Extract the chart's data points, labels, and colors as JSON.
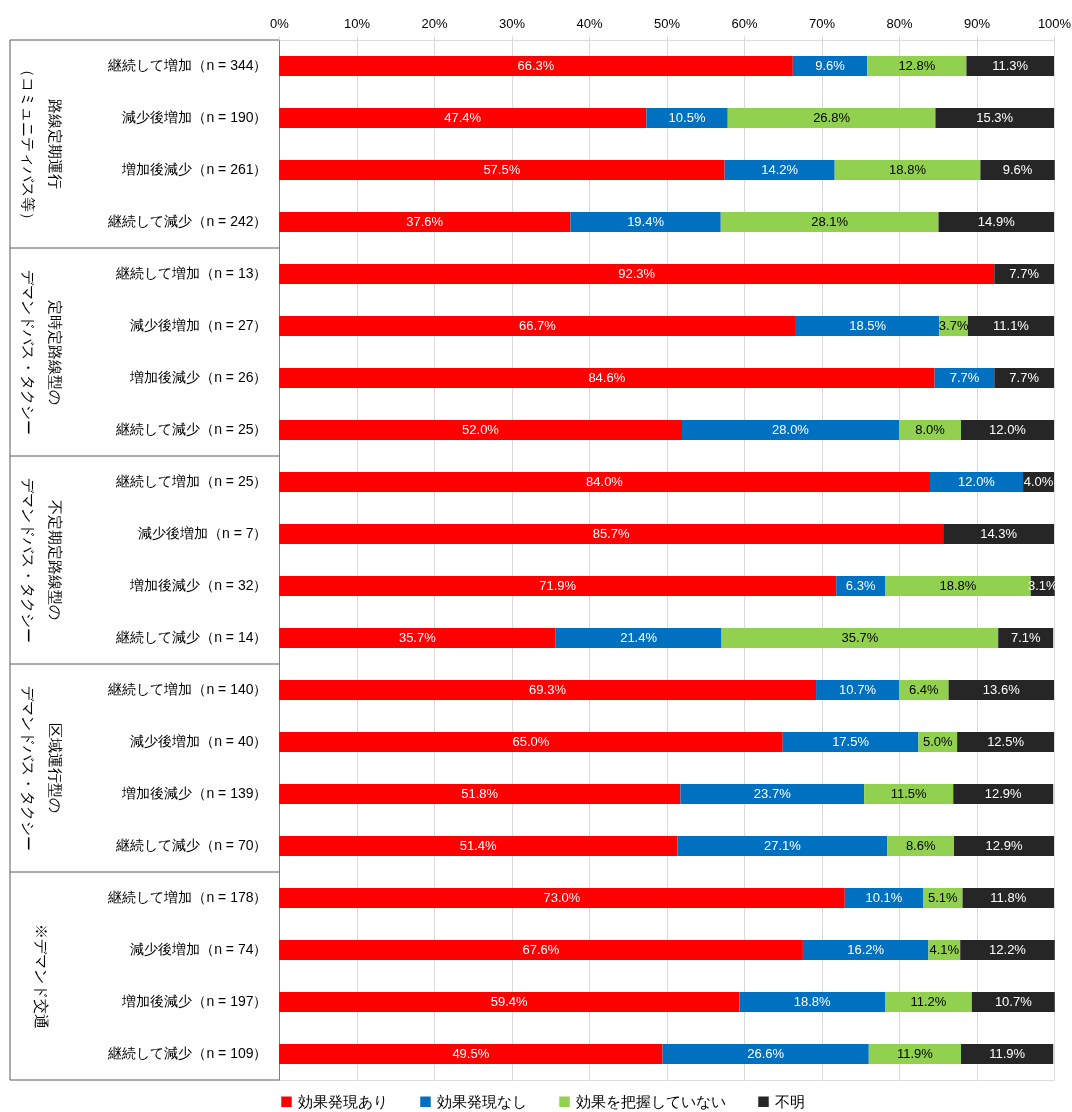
{
  "chart_data": {
    "type": "bar",
    "orientation": "horizontal",
    "stacked": true,
    "categories": [
      "継続して増加（n = 344）",
      "減少後増加（n = 190）",
      "増加後減少（n = 261）",
      "継続して減少（n = 242）",
      "継続して増加（n = 13）",
      "減少後増加（n = 27）",
      "増加後減少（n = 26）",
      "継続して減少（n = 25）",
      "継続して増加（n = 25）",
      "減少後増加（n = 7）",
      "増加後減少（n = 32）",
      "継続して減少（n = 14）",
      "継続して増加（n = 140）",
      "減少後増加（n = 40）",
      "増加後減少（n = 139）",
      "継続して減少（n = 70）",
      "継続して増加（n = 178）",
      "減少後増加（n = 74）",
      "増加後減少（n = 197）",
      "継続して減少（n = 109）"
    ],
    "series": [
      {
        "name": "効果発現あり",
        "color": "#ff0000",
        "values": [
          66.3,
          47.4,
          57.5,
          37.6,
          92.3,
          66.7,
          84.6,
          52.0,
          84.0,
          85.7,
          71.9,
          35.7,
          69.3,
          65.0,
          51.8,
          51.4,
          73.0,
          67.6,
          59.4,
          49.5
        ],
        "value_labels": [
          "66.3%",
          "47.4%",
          "57.5%",
          "37.6%",
          "92.3%",
          "66.7%",
          "84.6%",
          "52.0%",
          "84.0%",
          "85.7%",
          "71.9%",
          "35.7%",
          "69.3%",
          "65.0%",
          "51.8%",
          "51.4%",
          "73.0%",
          "67.6%",
          "59.4%",
          "49.5%"
        ]
      },
      {
        "name": "効果発現なし",
        "color": "#0070c0",
        "values": [
          9.6,
          10.5,
          14.2,
          19.4,
          null,
          18.5,
          7.7,
          28.0,
          12.0,
          null,
          6.3,
          21.4,
          10.7,
          17.5,
          23.7,
          27.1,
          10.1,
          16.2,
          18.8,
          26.6
        ],
        "value_labels": [
          "9.6%",
          "10.5%",
          "14.2%",
          "19.4%",
          null,
          "18.5%",
          "7.7%",
          "28.0%",
          "12.0%",
          null,
          "6.3%",
          "21.4%",
          "10.7%",
          "17.5%",
          "23.7%",
          "27.1%",
          "10.1%",
          "16.2%",
          "18.8%",
          "26.6%"
        ]
      },
      {
        "name": "効果を把握していない",
        "color": "#92d050",
        "values": [
          12.8,
          26.8,
          18.8,
          28.1,
          null,
          3.7,
          null,
          8.0,
          null,
          null,
          18.8,
          35.7,
          6.4,
          5.0,
          11.5,
          8.6,
          5.1,
          4.1,
          11.2,
          11.9
        ],
        "value_labels": [
          "12.8%",
          "26.8%",
          "18.8%",
          "28.1%",
          null,
          "3.7%",
          null,
          "8.0%",
          null,
          null,
          "18.8%",
          "35.7%",
          "6.4%",
          "5.0%",
          "11.5%",
          "8.6%",
          "5.1%",
          "4.1%",
          "11.2%",
          "11.9%"
        ]
      },
      {
        "name": "不明",
        "color": "#262626",
        "values": [
          11.3,
          15.3,
          9.6,
          14.9,
          7.7,
          11.1,
          7.7,
          12.0,
          4.0,
          14.3,
          3.1,
          7.1,
          13.6,
          12.5,
          12.9,
          12.9,
          11.8,
          12.2,
          10.7,
          11.9
        ],
        "value_labels": [
          "11.3%",
          "15.3%",
          "9.6%",
          "14.9%",
          "7.7%",
          "11.1%",
          "7.7%",
          "12.0%",
          "4.0%",
          "14.3%",
          "3.1%",
          "7.1%",
          "13.6%",
          "12.5%",
          "12.9%",
          "12.9%",
          "11.8%",
          "12.2%",
          "10.7%",
          "11.9%"
        ]
      }
    ],
    "xlim": [
      0,
      100
    ],
    "xticks": [
      {
        "value": 0,
        "label": "0%"
      },
      {
        "value": 10,
        "label": "10%"
      },
      {
        "value": 20,
        "label": "20%"
      },
      {
        "value": 30,
        "label": "30%"
      },
      {
        "value": 40,
        "label": "40%"
      },
      {
        "value": 50,
        "label": "50%"
      },
      {
        "value": 60,
        "label": "60%"
      },
      {
        "value": 70,
        "label": "70%"
      },
      {
        "value": 80,
        "label": "80%"
      },
      {
        "value": 90,
        "label": "90%"
      },
      {
        "value": 100,
        "label": "100%"
      }
    ],
    "grid": "x",
    "legend": "bottom",
    "annotations": [
      "路線定期運行（コミュニティバス等）",
      "定時定路線型のデマンドバス・タクシー",
      "不定期定路線型のデマンドバス・タクシー",
      "区域運行型のデマンドバス・タクシー",
      "※デマンド交通"
    ]
  }
}
